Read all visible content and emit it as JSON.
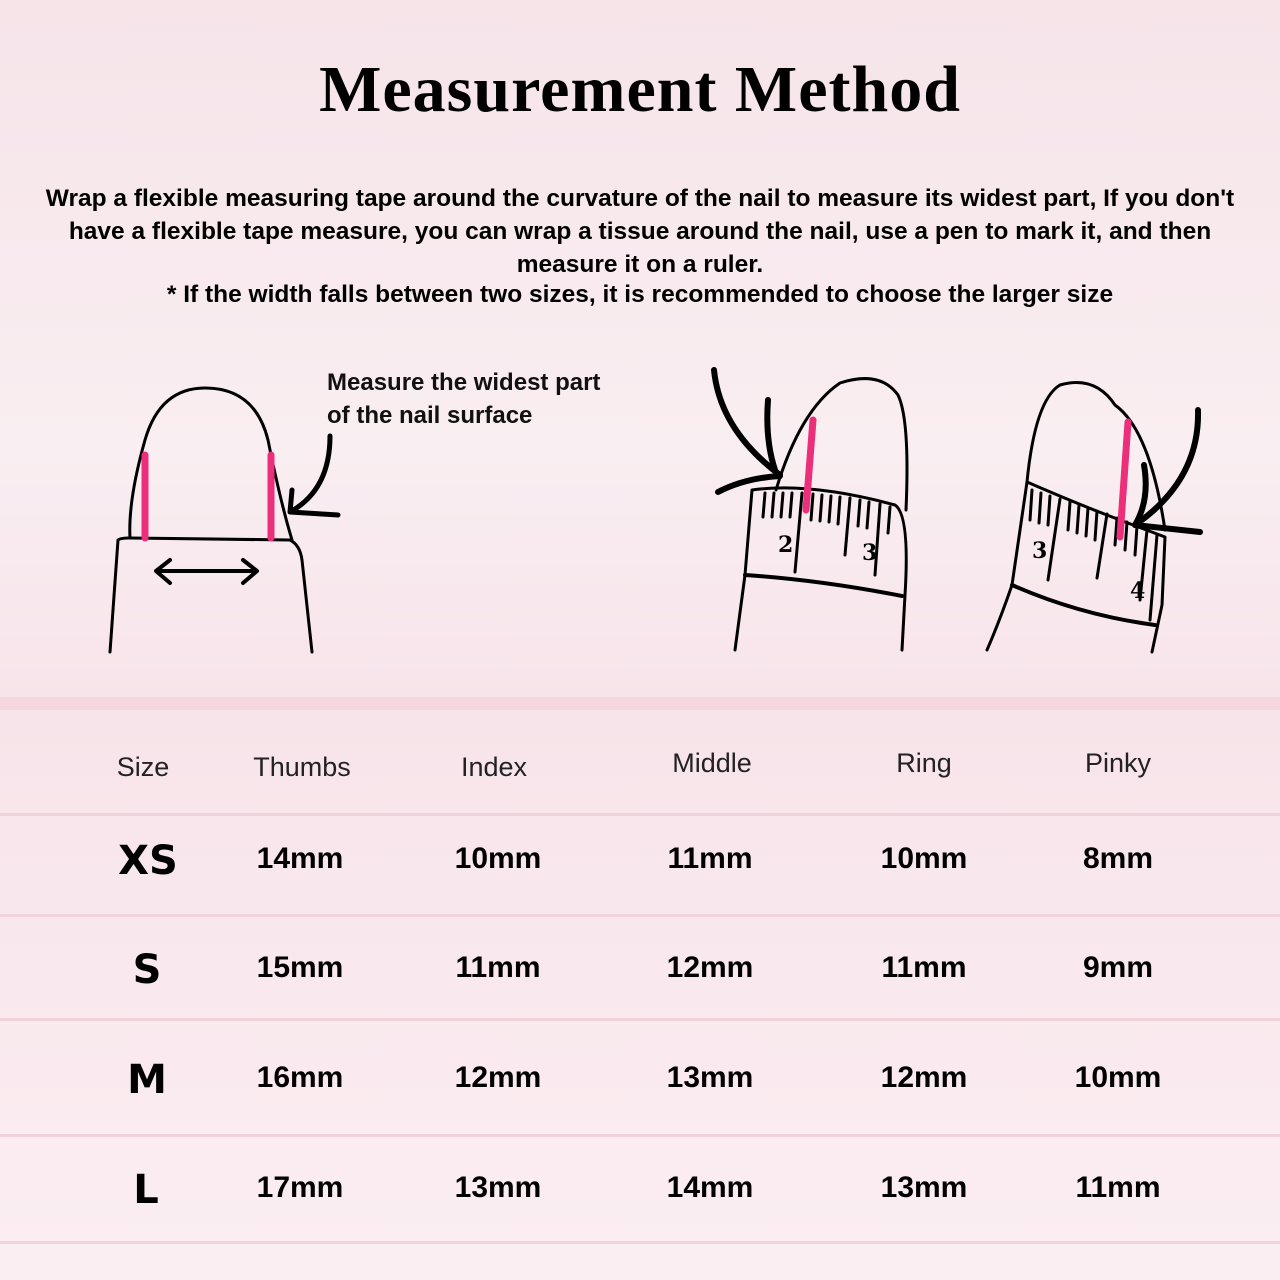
{
  "title": "Measurement Method",
  "description": "Wrap a flexible measuring tape around the curvature of the nail to measure its widest part, If you don't have a flexible tape measure, you can wrap a tissue around the nail, use a pen to mark it, and then measure it on a ruler.",
  "note": "* If the width falls between two sizes, it is recommended to choose the larger size",
  "illustration": {
    "caption_line1": "Measure the widest part",
    "caption_line2": "of the nail surface",
    "ruler1_labels": [
      "2",
      "3"
    ],
    "ruler2_labels": [
      "3",
      "4"
    ],
    "accent_color": "#ec2f7a"
  },
  "table": {
    "headers": [
      "Size",
      "Thumbs",
      "Index",
      "Middle",
      "Ring",
      "Pinky"
    ],
    "rows": [
      {
        "size": "XS",
        "values": [
          "14mm",
          "10mm",
          "11mm",
          "10mm",
          "8mm"
        ]
      },
      {
        "size": "S",
        "values": [
          "15mm",
          "11mm",
          "12mm",
          "11mm",
          "9mm"
        ]
      },
      {
        "size": "M",
        "values": [
          "16mm",
          "12mm",
          "13mm",
          "12mm",
          "10mm"
        ]
      },
      {
        "size": "L",
        "values": [
          "17mm",
          "13mm",
          "14mm",
          "13mm",
          "11mm"
        ]
      }
    ]
  }
}
